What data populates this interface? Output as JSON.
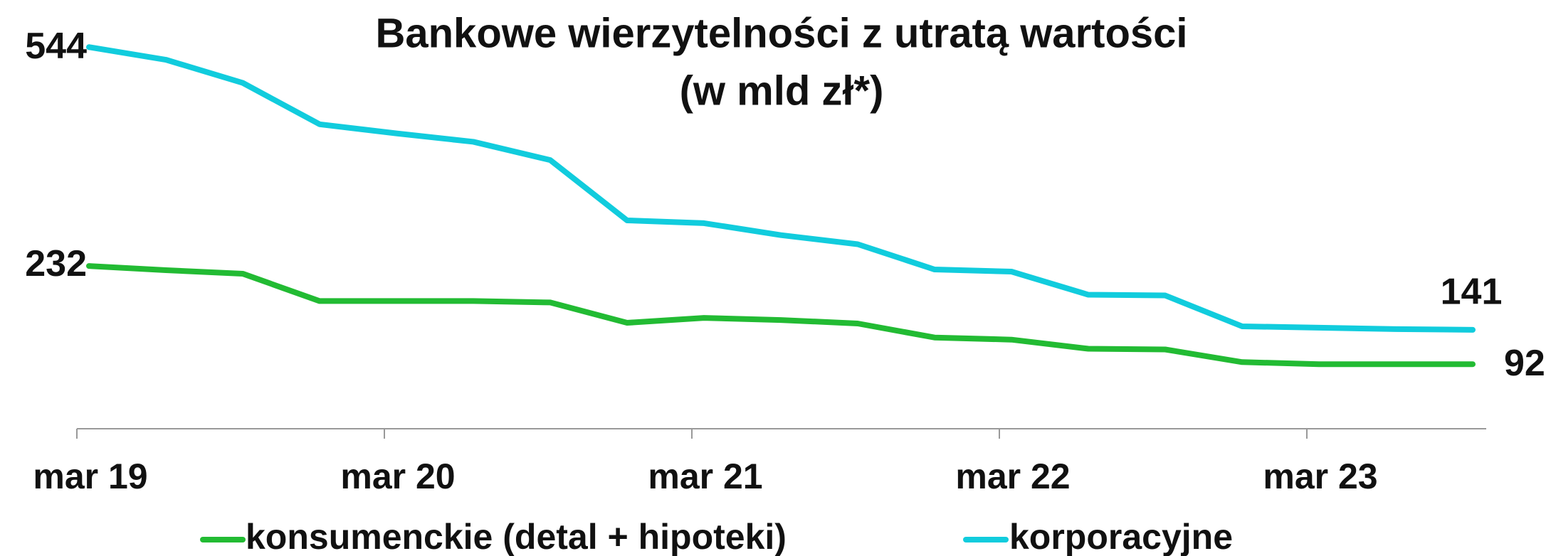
{
  "chart_data": {
    "type": "line",
    "title": "Bankowe wierzytelności z utratą wartości",
    "subtitle": "(w mld zł*)",
    "categories": [
      "mar 19",
      null,
      null,
      null,
      "mar 20",
      null,
      null,
      null,
      "mar 21",
      null,
      null,
      null,
      "mar 22",
      null,
      null,
      null,
      "mar 23",
      null,
      null
    ],
    "series": [
      {
        "name": "konsumenckie (detal + hipoteki)",
        "color": "#22bb33",
        "values": [
          232,
          226,
          221,
          182,
          182,
          182,
          180,
          151,
          158,
          155,
          150,
          130,
          127,
          114,
          113,
          95,
          92,
          92,
          92
        ]
      },
      {
        "name": "korporacyjne",
        "color": "#11ccdd",
        "values": [
          544,
          526,
          493,
          434,
          421,
          409,
          383,
          297,
          293,
          276,
          263,
          227,
          224,
          191,
          190,
          146,
          144,
          142,
          141
        ]
      }
    ],
    "ylim": [
      0,
      600
    ],
    "legend": "bottom"
  }
}
